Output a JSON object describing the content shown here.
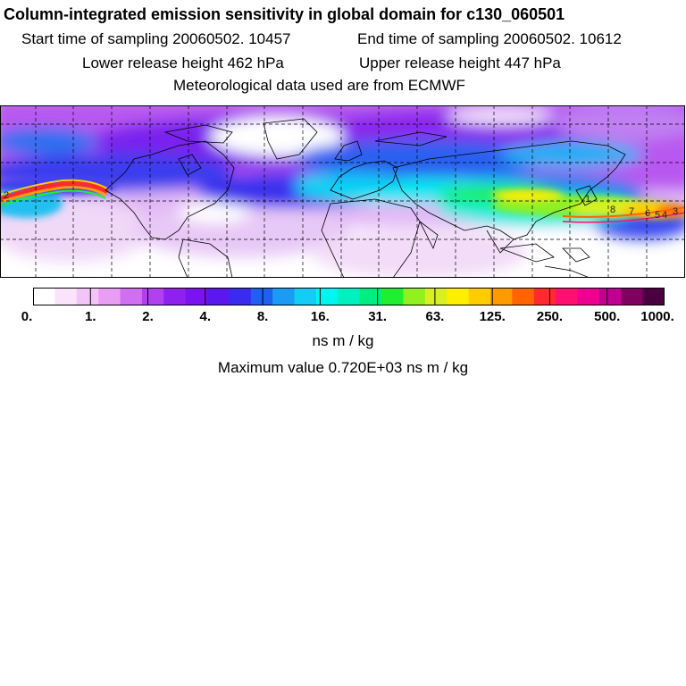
{
  "header": {
    "title": "Column-integrated emission sensitivity in global domain for c130_060501",
    "start_label": "Start time of sampling 20060502. 10457",
    "end_label": "End time of sampling 20060502. 10612",
    "lower_label": "Lower release height  462 hPa",
    "upper_label": "Upper release height  447 hPa",
    "met_label": "Meteorological data used are from ECMWF"
  },
  "legend": {
    "ticks": [
      "0.",
      "1.",
      "2.",
      "4.",
      "8.",
      "16.",
      "31.",
      "63.",
      "125.",
      "250.",
      "500.",
      "1000."
    ],
    "unit": "ns m / kg",
    "colors": [
      "#ffffff",
      "#fbe3fb",
      "#f3c4f7",
      "#ea9ef3",
      "#d070f0",
      "#b040f0",
      "#9020ee",
      "#7a14ee",
      "#5a18ee",
      "#3a2cee",
      "#2060f0",
      "#1a9cf5",
      "#14ccf5",
      "#00f5f0",
      "#00f0c0",
      "#00ee80",
      "#20ee30",
      "#90f020",
      "#d8f020",
      "#ffee00",
      "#ffcc00",
      "#ff9a00",
      "#ff6400",
      "#ff2a30",
      "#ff1070",
      "#ee0090",
      "#c00090",
      "#800060",
      "#4a0040"
    ],
    "max_text": "Maximum value  0.720E+03 ns m / kg"
  },
  "map": {
    "contour_labels": [
      "2",
      "8",
      "7",
      "6",
      "5",
      "4",
      "3",
      "1"
    ]
  }
}
